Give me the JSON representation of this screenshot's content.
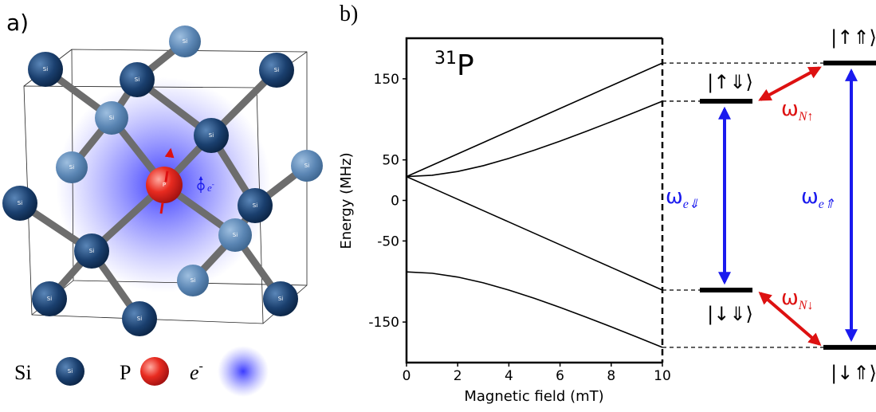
{
  "panel_a": {
    "label": "a)",
    "atom_label": "Si",
    "legend": {
      "si": "Si",
      "p": "P",
      "electron": "e",
      "electron_sup": "-"
    },
    "p_label": "P",
    "electron_tag": "e",
    "electron_tag_sup": "-"
  },
  "panel_b": {
    "label": "b)"
  },
  "chart_data": {
    "type": "line",
    "x_label": "Magnetic field (mT)",
    "y_label": "Energy (MHz)",
    "annotation": {
      "superscript": "31",
      "text": "P"
    },
    "x": [
      0,
      1,
      2,
      3,
      4,
      5,
      6,
      7,
      8,
      9,
      10
    ],
    "series": [
      {
        "color": "#000000",
        "values": [
          29.4,
          43.4,
          57.4,
          71.4,
          85.4,
          99.4,
          113.4,
          127.4,
          141.4,
          155.4,
          169.4
        ]
      },
      {
        "color": "#000000",
        "values": [
          29.4,
          31.0,
          35.7,
          42.8,
          51.8,
          62.0,
          73.1,
          84.9,
          97.1,
          109.6,
          122.4
        ]
      },
      {
        "color": "#000000",
        "values": [
          29.4,
          15.4,
          1.4,
          -12.6,
          -26.6,
          -40.6,
          -54.6,
          -68.6,
          -82.6,
          -96.6,
          -110.6
        ]
      },
      {
        "color": "#000000",
        "values": [
          -88.1,
          -89.8,
          -94.5,
          -101.6,
          -110.6,
          -120.8,
          -131.9,
          -143.7,
          -155.9,
          -168.4,
          -181.2
        ]
      }
    ],
    "xlim": [
      0,
      10
    ],
    "xticks": [
      0,
      2,
      4,
      6,
      8,
      10
    ],
    "ylim": [
      -200,
      200
    ],
    "yticks": [
      150,
      50,
      0,
      -50,
      -150
    ]
  },
  "energy_diagram": {
    "levels": [
      {
        "label": "|↑⇑⟩"
      },
      {
        "label": "|↑⇓⟩"
      },
      {
        "label": "|↓⇓⟩"
      },
      {
        "label": "|↓⇑⟩"
      }
    ],
    "transitions": [
      {
        "symbol": "ω",
        "subscript": "N↑"
      },
      {
        "symbol": "ω",
        "subscript": "e⇓"
      },
      {
        "symbol": "ω",
        "subscript": "e⇑"
      },
      {
        "symbol": "ω",
        "subscript": "N↓"
      }
    ]
  }
}
